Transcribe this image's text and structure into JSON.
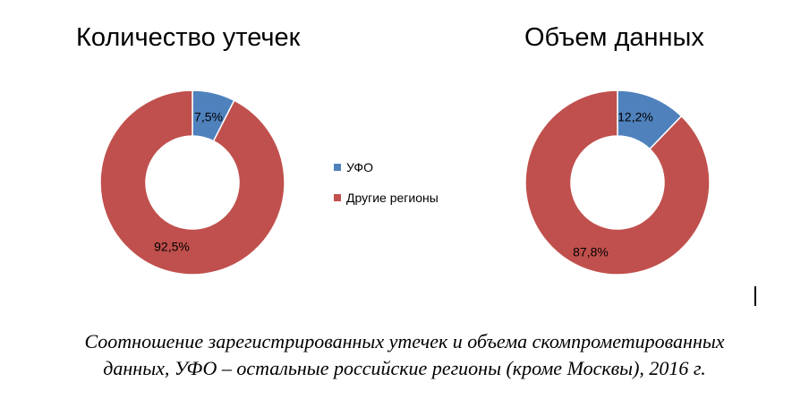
{
  "chart_data": [
    {
      "type": "pie",
      "title": "Количество утечек",
      "donut": true,
      "categories": [
        "УФО",
        "Другие регионы"
      ],
      "values": [
        7.5,
        92.5
      ],
      "labels": [
        "7,5%",
        "92,5%"
      ],
      "colors": [
        "#4f81bd",
        "#c0504d"
      ]
    },
    {
      "type": "pie",
      "title": "Объем данных",
      "donut": true,
      "categories": [
        "УФО",
        "Другие регионы"
      ],
      "values": [
        12.2,
        87.8
      ],
      "labels": [
        "12,2%",
        "87,8%"
      ],
      "colors": [
        "#4f81bd",
        "#c0504d"
      ]
    }
  ],
  "legend": {
    "position": "center",
    "items": [
      {
        "label": "УФО",
        "color": "#4f81bd"
      },
      {
        "label": "Другие регионы",
        "color": "#c0504d"
      }
    ]
  },
  "caption": {
    "line1": "Соотношение зарегистрированных утечек и объема скомпрометированных",
    "line2": "данных, УФО – остальные российские регионы (кроме Москвы), 2016 г."
  }
}
